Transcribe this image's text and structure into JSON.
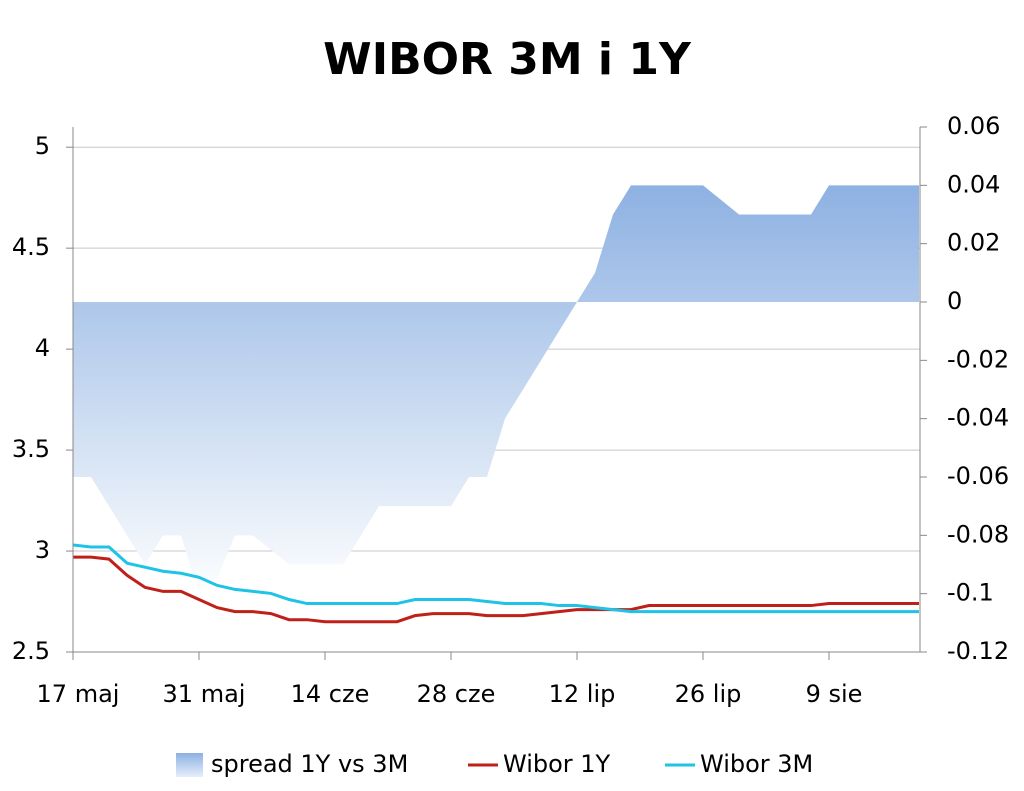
{
  "chart_data": {
    "type": "combo",
    "title": "WIBOR 3M i 1Y",
    "categories": [
      "17 maj",
      null,
      null,
      null,
      null,
      null,
      null,
      "31 maj",
      null,
      null,
      null,
      null,
      null,
      null,
      "14 cze",
      null,
      null,
      null,
      null,
      null,
      null,
      "28 cze",
      null,
      null,
      null,
      null,
      null,
      null,
      "12 lip",
      null,
      null,
      null,
      null,
      null,
      null,
      "26 lip",
      null,
      null,
      null,
      null,
      null,
      null,
      "9 sie",
      null,
      null,
      null,
      null,
      null
    ],
    "series": [
      {
        "name": "spread 1Y vs 3M",
        "kind": "area",
        "axis": "y2",
        "color": "#8db1e2",
        "values": [
          -0.06,
          -0.06,
          -0.07,
          -0.08,
          -0.09,
          -0.08,
          -0.08,
          -0.1,
          -0.095,
          -0.08,
          -0.08,
          -0.085,
          -0.09,
          -0.09,
          -0.09,
          -0.09,
          -0.08,
          -0.07,
          -0.07,
          -0.07,
          -0.07,
          -0.07,
          -0.06,
          -0.06,
          -0.04,
          -0.03,
          -0.02,
          -0.01,
          0,
          0.01,
          0.03,
          0.04,
          0.04,
          0.04,
          0.04,
          0.04,
          0.035,
          0.03,
          0.03,
          0.03,
          0.03,
          0.03,
          0.04,
          0.04,
          0.04,
          0.04,
          0.04,
          0.04
        ]
      },
      {
        "name": "Wibor 1Y",
        "kind": "line",
        "color": "#c0201a",
        "values": [
          2.97,
          2.97,
          2.96,
          2.88,
          2.82,
          2.8,
          2.8,
          2.76,
          2.72,
          2.7,
          2.7,
          2.69,
          2.66,
          2.66,
          2.65,
          2.65,
          2.65,
          2.65,
          2.65,
          2.68,
          2.69,
          2.69,
          2.69,
          2.68,
          2.68,
          2.68,
          2.69,
          2.7,
          2.71,
          2.71,
          2.71,
          2.71,
          2.73,
          2.73,
          2.73,
          2.73,
          2.73,
          2.73,
          2.73,
          2.73,
          2.73,
          2.73,
          2.74,
          2.74,
          2.74,
          2.74,
          2.74,
          2.74
        ]
      },
      {
        "name": "Wibor 3M",
        "kind": "line",
        "color": "#1ec3e6",
        "values": [
          3.03,
          3.02,
          3.02,
          2.94,
          2.92,
          2.9,
          2.89,
          2.87,
          2.83,
          2.81,
          2.8,
          2.79,
          2.76,
          2.74,
          2.74,
          2.74,
          2.74,
          2.74,
          2.74,
          2.76,
          2.76,
          2.76,
          2.76,
          2.75,
          2.74,
          2.74,
          2.74,
          2.73,
          2.73,
          2.72,
          2.71,
          2.7,
          2.7,
          2.7,
          2.7,
          2.7,
          2.7,
          2.7,
          2.7,
          2.7,
          2.7,
          2.7,
          2.7,
          2.7,
          2.7,
          2.7,
          2.7,
          2.7
        ]
      }
    ],
    "ylim": [
      2.5,
      5.1
    ],
    "yticks": [
      2.5,
      3,
      3.5,
      4,
      4.5,
      5
    ],
    "y2lim": [
      -0.12,
      0.06
    ],
    "y2ticks": [
      -0.12,
      -0.1,
      -0.08,
      -0.06,
      -0.04,
      -0.02,
      0,
      0.02,
      0.04,
      0.06
    ],
    "grid": true,
    "legend": "bottom"
  }
}
